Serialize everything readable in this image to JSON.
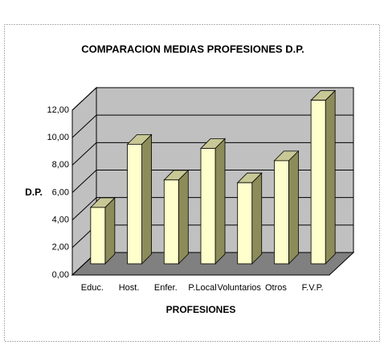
{
  "chart_data": {
    "type": "bar3d",
    "title": "COMPARACION MEDIAS PROFESIONES D.P.",
    "x_label": "PROFESIONES",
    "y_label": "D.P.",
    "categories": [
      "Educ.",
      "Host.",
      "Enfer.",
      "P.Local",
      "Voluntarios",
      "Otros",
      "F.V.P."
    ],
    "values": [
      4.1,
      8.7,
      6.1,
      8.4,
      5.9,
      7.5,
      11.9
    ],
    "color": "#ffffcc",
    "ylim": [
      0,
      12
    ],
    "yticks": [
      {
        "value": 0,
        "label": "0,00"
      },
      {
        "value": 2,
        "label": "2,00"
      },
      {
        "value": 4,
        "label": "4,00"
      },
      {
        "value": 6,
        "label": "6,00"
      },
      {
        "value": 8,
        "label": "8,00"
      },
      {
        "value": 10,
        "label": "10,00"
      },
      {
        "value": 12,
        "label": "12,00"
      }
    ],
    "grid": true
  }
}
